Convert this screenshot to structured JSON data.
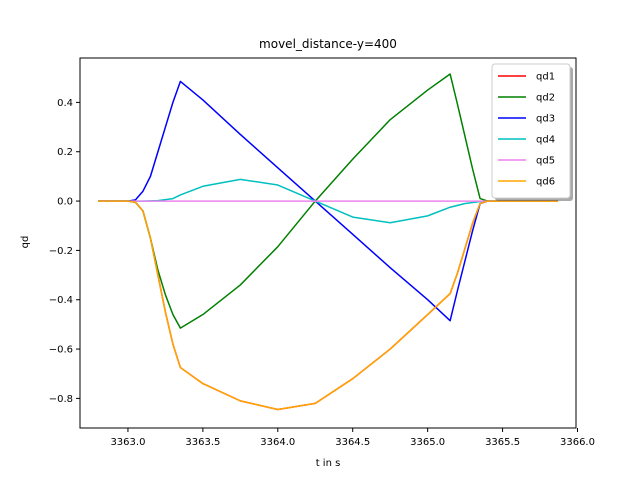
{
  "chart_data": {
    "type": "line",
    "title": "movel_distance-y=400",
    "xlabel": "t in s",
    "ylabel": "qd",
    "xlim": [
      3362.68,
      3365.99
    ],
    "ylim": [
      -0.92,
      0.58
    ],
    "xticks": [
      3363.0,
      3363.5,
      3364.0,
      3364.5,
      3365.0,
      3365.5,
      3366.0
    ],
    "yticks": [
      -0.8,
      -0.6,
      -0.4,
      -0.2,
      0.0,
      0.2,
      0.4
    ],
    "xtick_labels": [
      "3363.0",
      "3363.5",
      "3364.0",
      "3364.5",
      "3365.0",
      "3365.5",
      "3366.0"
    ],
    "ytick_labels": [
      "−0.8",
      "−0.6",
      "−0.4",
      "−0.2",
      "0.0",
      "0.2",
      "0.4"
    ],
    "grid": false,
    "legend_position": "top-right",
    "series": [
      {
        "name": "qd1",
        "color": "#ff0000",
        "points": [
          [
            3362.8,
            0
          ],
          [
            3363.0,
            0
          ],
          [
            3363.05,
            -0.005
          ],
          [
            3363.1,
            -0.04
          ],
          [
            3363.15,
            -0.15
          ],
          [
            3363.2,
            -0.3
          ],
          [
            3363.25,
            -0.45
          ],
          [
            3363.3,
            -0.58
          ],
          [
            3363.35,
            -0.675
          ],
          [
            3363.5,
            -0.74
          ],
          [
            3363.75,
            -0.81
          ],
          [
            3364.0,
            -0.845
          ],
          [
            3364.25,
            -0.82
          ],
          [
            3364.5,
            -0.72
          ],
          [
            3364.75,
            -0.6
          ],
          [
            3365.0,
            -0.46
          ],
          [
            3365.15,
            -0.375
          ],
          [
            3365.2,
            -0.29
          ],
          [
            3365.25,
            -0.19
          ],
          [
            3365.3,
            -0.09
          ],
          [
            3365.35,
            -0.01
          ],
          [
            3365.4,
            0
          ],
          [
            3365.87,
            0
          ]
        ]
      },
      {
        "name": "qd2",
        "color": "#008000",
        "points": [
          [
            3362.8,
            0
          ],
          [
            3363.0,
            0
          ],
          [
            3363.05,
            -0.005
          ],
          [
            3363.1,
            -0.04
          ],
          [
            3363.15,
            -0.15
          ],
          [
            3363.2,
            -0.28
          ],
          [
            3363.25,
            -0.38
          ],
          [
            3363.3,
            -0.46
          ],
          [
            3363.35,
            -0.515
          ],
          [
            3363.5,
            -0.46
          ],
          [
            3363.75,
            -0.34
          ],
          [
            3364.0,
            -0.185
          ],
          [
            3364.25,
            0
          ],
          [
            3364.5,
            0.17
          ],
          [
            3364.75,
            0.33
          ],
          [
            3365.0,
            0.45
          ],
          [
            3365.15,
            0.515
          ],
          [
            3365.2,
            0.39
          ],
          [
            3365.25,
            0.26
          ],
          [
            3365.3,
            0.13
          ],
          [
            3365.35,
            0.01
          ],
          [
            3365.4,
            0
          ],
          [
            3365.87,
            0
          ]
        ]
      },
      {
        "name": "qd3",
        "color": "#0000ff",
        "points": [
          [
            3362.8,
            0
          ],
          [
            3363.0,
            0
          ],
          [
            3363.05,
            0.005
          ],
          [
            3363.1,
            0.04
          ],
          [
            3363.15,
            0.1
          ],
          [
            3363.2,
            0.2
          ],
          [
            3363.25,
            0.3
          ],
          [
            3363.3,
            0.4
          ],
          [
            3363.35,
            0.485
          ],
          [
            3363.5,
            0.41
          ],
          [
            3363.75,
            0.27
          ],
          [
            3364.0,
            0.135
          ],
          [
            3364.25,
            0
          ],
          [
            3364.5,
            -0.135
          ],
          [
            3364.75,
            -0.27
          ],
          [
            3365.0,
            -0.4
          ],
          [
            3365.15,
            -0.485
          ],
          [
            3365.2,
            -0.36
          ],
          [
            3365.25,
            -0.24
          ],
          [
            3365.3,
            -0.12
          ],
          [
            3365.35,
            -0.01
          ],
          [
            3365.4,
            0
          ],
          [
            3365.87,
            0
          ]
        ]
      },
      {
        "name": "qd4",
        "color": "#00bfbf",
        "points": [
          [
            3362.8,
            0
          ],
          [
            3363.1,
            0
          ],
          [
            3363.2,
            0.002
          ],
          [
            3363.3,
            0.01
          ],
          [
            3363.35,
            0.025
          ],
          [
            3363.5,
            0.06
          ],
          [
            3363.75,
            0.088
          ],
          [
            3364.0,
            0.065
          ],
          [
            3364.25,
            0
          ],
          [
            3364.5,
            -0.065
          ],
          [
            3364.75,
            -0.088
          ],
          [
            3365.0,
            -0.06
          ],
          [
            3365.15,
            -0.025
          ],
          [
            3365.25,
            -0.01
          ],
          [
            3365.35,
            -0.002
          ],
          [
            3365.4,
            0
          ],
          [
            3365.87,
            0
          ]
        ]
      },
      {
        "name": "qd5",
        "color": "#ee82ee",
        "points": [
          [
            3362.8,
            0
          ],
          [
            3365.87,
            0
          ]
        ]
      },
      {
        "name": "qd6",
        "color": "#ffa500",
        "points": [
          [
            3362.8,
            0
          ],
          [
            3363.0,
            0
          ],
          [
            3363.05,
            -0.005
          ],
          [
            3363.1,
            -0.04
          ],
          [
            3363.15,
            -0.15
          ],
          [
            3363.2,
            -0.3
          ],
          [
            3363.25,
            -0.45
          ],
          [
            3363.3,
            -0.58
          ],
          [
            3363.35,
            -0.675
          ],
          [
            3363.5,
            -0.74
          ],
          [
            3363.75,
            -0.81
          ],
          [
            3364.0,
            -0.845
          ],
          [
            3364.25,
            -0.82
          ],
          [
            3364.5,
            -0.72
          ],
          [
            3364.75,
            -0.6
          ],
          [
            3365.0,
            -0.46
          ],
          [
            3365.15,
            -0.375
          ],
          [
            3365.2,
            -0.29
          ],
          [
            3365.25,
            -0.19
          ],
          [
            3365.3,
            -0.09
          ],
          [
            3365.35,
            -0.01
          ],
          [
            3365.4,
            0
          ],
          [
            3365.87,
            0
          ]
        ]
      }
    ]
  }
}
